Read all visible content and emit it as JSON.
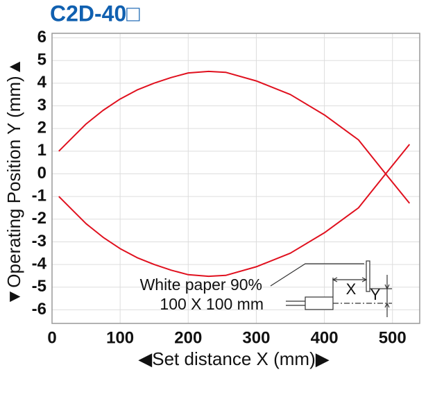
{
  "chart_data": {
    "type": "line",
    "title": "C2D-40□",
    "x_label": "◀Set distance X (mm)▶",
    "y_label": "▼Operating Position Y (mm)▲",
    "annotations": [
      "White paper 90%",
      "100 X 100 mm"
    ],
    "diagram_labels": [
      "X",
      "Y"
    ],
    "x": [
      10,
      30,
      50,
      75,
      100,
      125,
      150,
      175,
      200,
      230,
      255,
      300,
      350,
      400,
      450,
      490,
      525
    ],
    "series": [
      {
        "color": "#e0101e",
        "values": [
          1.0,
          1.6,
          2.2,
          2.8,
          3.3,
          3.7,
          4.0,
          4.25,
          4.45,
          4.52,
          4.48,
          4.1,
          3.5,
          2.6,
          1.5,
          0.0,
          -1.3
        ]
      },
      {
        "color": "#e0101e",
        "values": [
          -1.0,
          -1.6,
          -2.2,
          -2.8,
          -3.3,
          -3.7,
          -4.0,
          -4.25,
          -4.45,
          -4.52,
          -4.48,
          -4.1,
          -3.5,
          -2.6,
          -1.5,
          0.0,
          1.3
        ]
      }
    ],
    "xlim": [
      0,
      540
    ],
    "xticks": [
      0,
      100,
      200,
      300,
      400,
      500
    ],
    "ylim": [
      -6.6,
      6.2
    ],
    "yticks": [
      6,
      5,
      4,
      3,
      2,
      1,
      0,
      -1,
      -2,
      -3,
      -4,
      -5,
      -6
    ],
    "grid": true
  }
}
